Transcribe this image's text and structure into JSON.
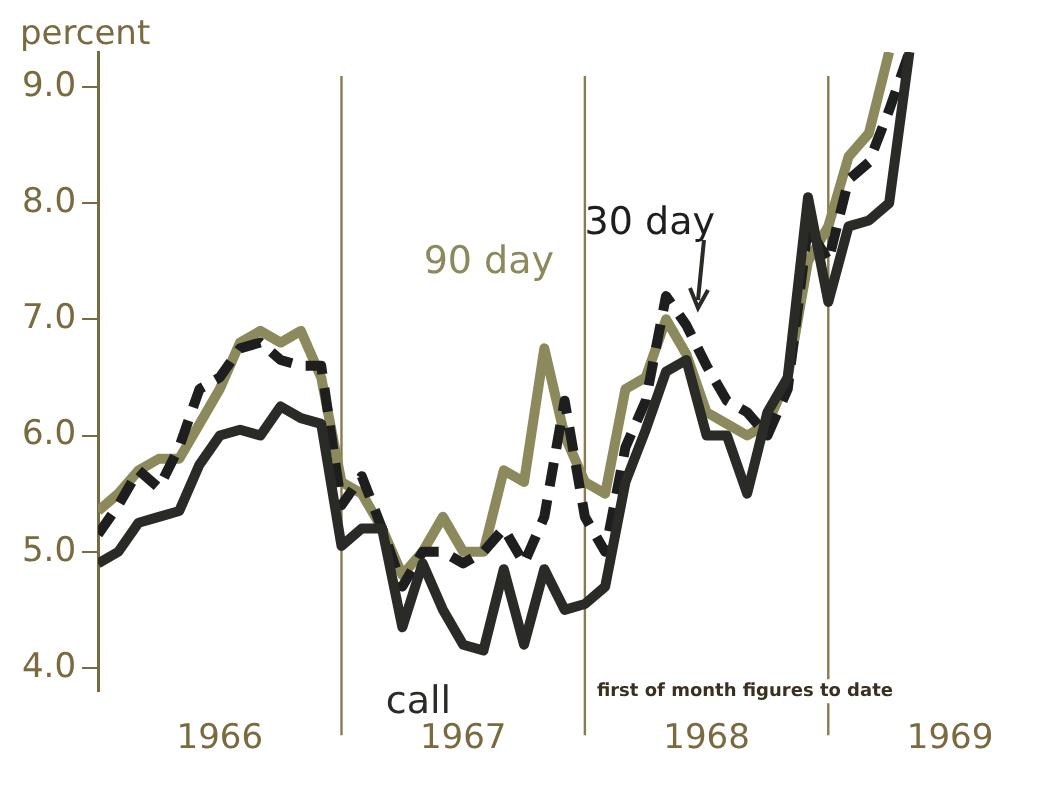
{
  "chart_data": {
    "type": "line",
    "ylabel": "percent",
    "xlim": [
      "1966-01",
      "1969-07"
    ],
    "xticks": [
      {
        "value": "1966-07",
        "label": "1966"
      },
      {
        "value": "1967-07",
        "label": "1967"
      },
      {
        "value": "1968-07",
        "label": "1968"
      },
      {
        "value": "1969-07",
        "label": "1969"
      }
    ],
    "ylim": [
      3.8,
      9.3
    ],
    "yticks": [
      {
        "value": 4,
        "label": "4.0"
      },
      {
        "value": 5,
        "label": "5.0"
      },
      {
        "value": 6,
        "label": "6.0"
      },
      {
        "value": 7,
        "label": "7.0"
      },
      {
        "value": 8,
        "label": "8.0"
      },
      {
        "value": 9,
        "label": "9.0"
      }
    ],
    "x": [
      "1966-01",
      "1966-02",
      "1966-03",
      "1966-04",
      "1966-05",
      "1966-06",
      "1966-07",
      "1966-08",
      "1966-09",
      "1966-10",
      "1966-11",
      "1966-12",
      "1967-01",
      "1967-02",
      "1967-03",
      "1967-04",
      "1967-05",
      "1967-06",
      "1967-07",
      "1967-08",
      "1967-09",
      "1967-10",
      "1967-11",
      "1967-12",
      "1968-01",
      "1968-02",
      "1968-03",
      "1968-04",
      "1968-05",
      "1968-06",
      "1968-07",
      "1968-08",
      "1968-09",
      "1968-10",
      "1968-11",
      "1968-12",
      "1969-01",
      "1969-02",
      "1969-03",
      "1969-04",
      "1969-05"
    ],
    "series": [
      {
        "name": "90 day",
        "color": "#8c8a5c",
        "line_style": "solid",
        "values": [
          5.35,
          5.5,
          5.7,
          5.8,
          5.8,
          6.1,
          6.4,
          6.8,
          6.9,
          6.8,
          6.9,
          6.5,
          5.6,
          5.5,
          5.2,
          4.8,
          5.0,
          5.3,
          5.0,
          5.0,
          5.7,
          5.6,
          6.75,
          6.0,
          5.6,
          5.5,
          6.4,
          6.5,
          7.0,
          6.7,
          6.2,
          6.1,
          6.0,
          6.1,
          6.5,
          7.5,
          7.8,
          8.4,
          8.6,
          9.3,
          null
        ]
      },
      {
        "name": "30 day",
        "color": "#1e1e1e",
        "line_style": "dashed",
        "values": [
          5.15,
          5.4,
          5.7,
          5.55,
          5.9,
          6.4,
          6.5,
          6.75,
          6.8,
          6.65,
          6.6,
          6.6,
          5.4,
          5.65,
          5.2,
          4.7,
          5.0,
          5.0,
          4.9,
          5.0,
          5.2,
          4.9,
          5.3,
          6.3,
          5.3,
          5.0,
          5.9,
          6.3,
          7.2,
          6.95,
          6.6,
          6.3,
          6.2,
          6.0,
          6.4,
          7.8,
          7.5,
          8.2,
          8.35,
          8.8,
          9.3
        ]
      },
      {
        "name": "call",
        "color": "#2a2a26",
        "line_style": "solid",
        "values": [
          4.9,
          5.0,
          5.25,
          5.3,
          5.35,
          5.75,
          6.0,
          6.05,
          6.0,
          6.25,
          6.15,
          6.1,
          5.05,
          5.2,
          5.2,
          4.35,
          4.9,
          4.5,
          4.2,
          4.15,
          4.85,
          4.2,
          4.85,
          4.5,
          4.55,
          4.7,
          5.6,
          6.05,
          6.55,
          6.65,
          6.0,
          6.0,
          5.5,
          6.2,
          6.5,
          8.05,
          7.15,
          7.8,
          7.85,
          8.0,
          9.3
        ]
      }
    ],
    "ref_lines": [
      {
        "axis": "x",
        "value": "1967-01",
        "color": "#8a7a50"
      },
      {
        "axis": "x",
        "value": "1968-01",
        "color": "#8a7a50"
      },
      {
        "axis": "x",
        "value": "1969-01",
        "color": "#8a7a50"
      }
    ],
    "annotations": [
      "first of month figures to date"
    ],
    "grid": false,
    "legend": false
  }
}
